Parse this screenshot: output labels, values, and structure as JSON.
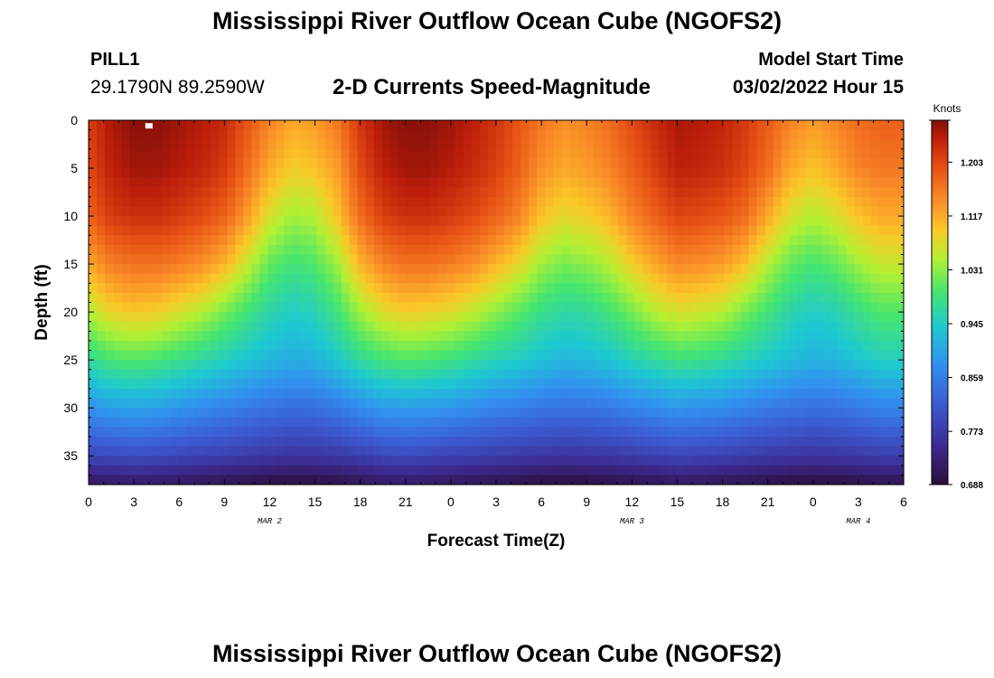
{
  "page": {
    "title": "Mississippi River Outflow Ocean Cube (NGOFS2)",
    "station_id": "PILL1",
    "coordinates": "29.1790N  89.2590W",
    "model_start_label": "Model Start Time",
    "model_start_value": "03/02/2022 Hour 15",
    "repeat_title": "Mississippi River Outflow Ocean Cube (NGOFS2)"
  },
  "chart_data": {
    "type": "heatmap",
    "title": "2-D Currents Speed-Magnitude",
    "xlabel": "Forecast Time(Z)",
    "ylabel": "Depth (ft)",
    "x_ticks": [
      "0",
      "3",
      "6",
      "9",
      "12",
      "15",
      "18",
      "21",
      "0",
      "3",
      "6",
      "9",
      "12",
      "15",
      "18",
      "21",
      "0",
      "3",
      "6"
    ],
    "x_tick_values_hours": [
      0,
      3,
      6,
      9,
      12,
      15,
      18,
      21,
      24,
      27,
      30,
      33,
      36,
      39,
      42,
      45,
      48,
      51,
      54
    ],
    "xlim_hours": [
      0,
      54
    ],
    "day_labels": [
      {
        "label": "MAR 2",
        "hour": 12
      },
      {
        "label": "MAR 3",
        "hour": 36
      },
      {
        "label": "MAR 4",
        "hour": 51
      }
    ],
    "y_ticks": [
      0,
      5,
      10,
      15,
      20,
      25,
      30,
      35
    ],
    "ylim": [
      0,
      38
    ],
    "y_inverted": true,
    "colorbar": {
      "unit": "Knots",
      "ticks": [
        "1.203",
        "1.117",
        "1.031",
        "0.945",
        "0.859",
        "0.773",
        "0.688"
      ],
      "tick_values": [
        1.203,
        1.117,
        1.031,
        0.945,
        0.859,
        0.773,
        0.688
      ],
      "range": [
        0.688,
        1.27
      ]
    },
    "grid_hours": [
      0,
      1.5,
      3,
      4.5,
      6,
      7.5,
      9,
      10.5,
      12,
      13.5,
      15,
      16.5,
      18,
      19.5,
      21,
      22.5,
      24,
      25.5,
      27,
      28.5,
      30,
      31.5,
      33,
      34.5,
      36,
      37.5,
      39,
      40.5,
      42,
      43.5,
      45,
      46.5,
      48,
      49.5,
      51,
      52.5,
      54
    ],
    "grid_depths_ft": [
      0,
      5,
      10,
      15,
      20,
      25,
      30,
      35,
      38
    ],
    "speed_knots": [
      [
        1.21,
        1.25,
        1.265,
        1.265,
        1.255,
        1.245,
        1.23,
        1.19,
        1.15,
        1.12,
        1.13,
        1.16,
        1.22,
        1.255,
        1.265,
        1.265,
        1.255,
        1.24,
        1.22,
        1.19,
        1.16,
        1.14,
        1.15,
        1.17,
        1.2,
        1.23,
        1.25,
        1.245,
        1.235,
        1.215,
        1.185,
        1.15,
        1.13,
        1.15,
        1.17,
        1.18,
        1.18
      ],
      [
        1.2,
        1.24,
        1.255,
        1.255,
        1.245,
        1.235,
        1.215,
        1.17,
        1.12,
        1.09,
        1.1,
        1.13,
        1.2,
        1.24,
        1.255,
        1.255,
        1.245,
        1.23,
        1.21,
        1.18,
        1.14,
        1.12,
        1.13,
        1.15,
        1.18,
        1.21,
        1.24,
        1.235,
        1.225,
        1.205,
        1.17,
        1.12,
        1.1,
        1.12,
        1.15,
        1.16,
        1.16
      ],
      [
        1.18,
        1.215,
        1.225,
        1.225,
        1.215,
        1.2,
        1.18,
        1.13,
        1.07,
        1.04,
        1.05,
        1.1,
        1.17,
        1.21,
        1.225,
        1.225,
        1.215,
        1.2,
        1.18,
        1.15,
        1.1,
        1.08,
        1.09,
        1.11,
        1.15,
        1.18,
        1.205,
        1.2,
        1.19,
        1.17,
        1.12,
        1.07,
        1.05,
        1.07,
        1.1,
        1.12,
        1.12
      ],
      [
        1.12,
        1.155,
        1.165,
        1.165,
        1.155,
        1.14,
        1.11,
        1.06,
        1.01,
        0.99,
        1.0,
        1.04,
        1.11,
        1.15,
        1.165,
        1.165,
        1.155,
        1.14,
        1.11,
        1.08,
        1.04,
        1.02,
        1.03,
        1.05,
        1.09,
        1.12,
        1.145,
        1.14,
        1.13,
        1.1,
        1.05,
        1.01,
        0.995,
        1.01,
        1.04,
        1.06,
        1.06
      ],
      [
        1.05,
        1.085,
        1.095,
        1.09,
        1.07,
        1.05,
        1.02,
        0.99,
        0.96,
        0.945,
        0.955,
        0.99,
        1.04,
        1.075,
        1.09,
        1.085,
        1.075,
        1.055,
        1.03,
        1.005,
        0.98,
        0.965,
        0.97,
        0.99,
        1.02,
        1.05,
        1.07,
        1.065,
        1.05,
        1.02,
        0.99,
        0.96,
        0.945,
        0.955,
        0.98,
        1.0,
        1.0
      ],
      [
        0.97,
        0.995,
        1.0,
        0.995,
        0.98,
        0.965,
        0.95,
        0.935,
        0.92,
        0.91,
        0.915,
        0.94,
        0.97,
        0.99,
        1.0,
        0.995,
        0.985,
        0.97,
        0.955,
        0.945,
        0.93,
        0.92,
        0.925,
        0.935,
        0.955,
        0.97,
        0.985,
        0.98,
        0.97,
        0.955,
        0.94,
        0.925,
        0.915,
        0.92,
        0.935,
        0.95,
        0.95
      ],
      [
        0.88,
        0.895,
        0.9,
        0.895,
        0.885,
        0.875,
        0.865,
        0.855,
        0.845,
        0.84,
        0.842,
        0.855,
        0.875,
        0.89,
        0.895,
        0.89,
        0.885,
        0.875,
        0.865,
        0.86,
        0.85,
        0.845,
        0.848,
        0.855,
        0.865,
        0.875,
        0.885,
        0.88,
        0.875,
        0.865,
        0.855,
        0.848,
        0.842,
        0.845,
        0.855,
        0.865,
        0.865
      ],
      [
        0.79,
        0.795,
        0.8,
        0.795,
        0.79,
        0.785,
        0.78,
        0.775,
        0.77,
        0.765,
        0.767,
        0.772,
        0.78,
        0.79,
        0.795,
        0.79,
        0.785,
        0.78,
        0.776,
        0.772,
        0.768,
        0.765,
        0.767,
        0.77,
        0.776,
        0.783,
        0.79,
        0.787,
        0.782,
        0.777,
        0.772,
        0.768,
        0.765,
        0.767,
        0.772,
        0.778,
        0.778
      ],
      [
        0.71,
        0.712,
        0.715,
        0.713,
        0.71,
        0.705,
        0.7,
        0.695,
        0.69,
        0.688,
        0.69,
        0.695,
        0.705,
        0.712,
        0.715,
        0.713,
        0.71,
        0.705,
        0.7,
        0.695,
        0.69,
        0.688,
        0.69,
        0.695,
        0.7,
        0.705,
        0.71,
        0.708,
        0.705,
        0.7,
        0.695,
        0.69,
        0.688,
        0.69,
        0.695,
        0.7,
        0.7
      ]
    ],
    "marker": {
      "hour": 4,
      "depth_ft": 0.3
    }
  }
}
